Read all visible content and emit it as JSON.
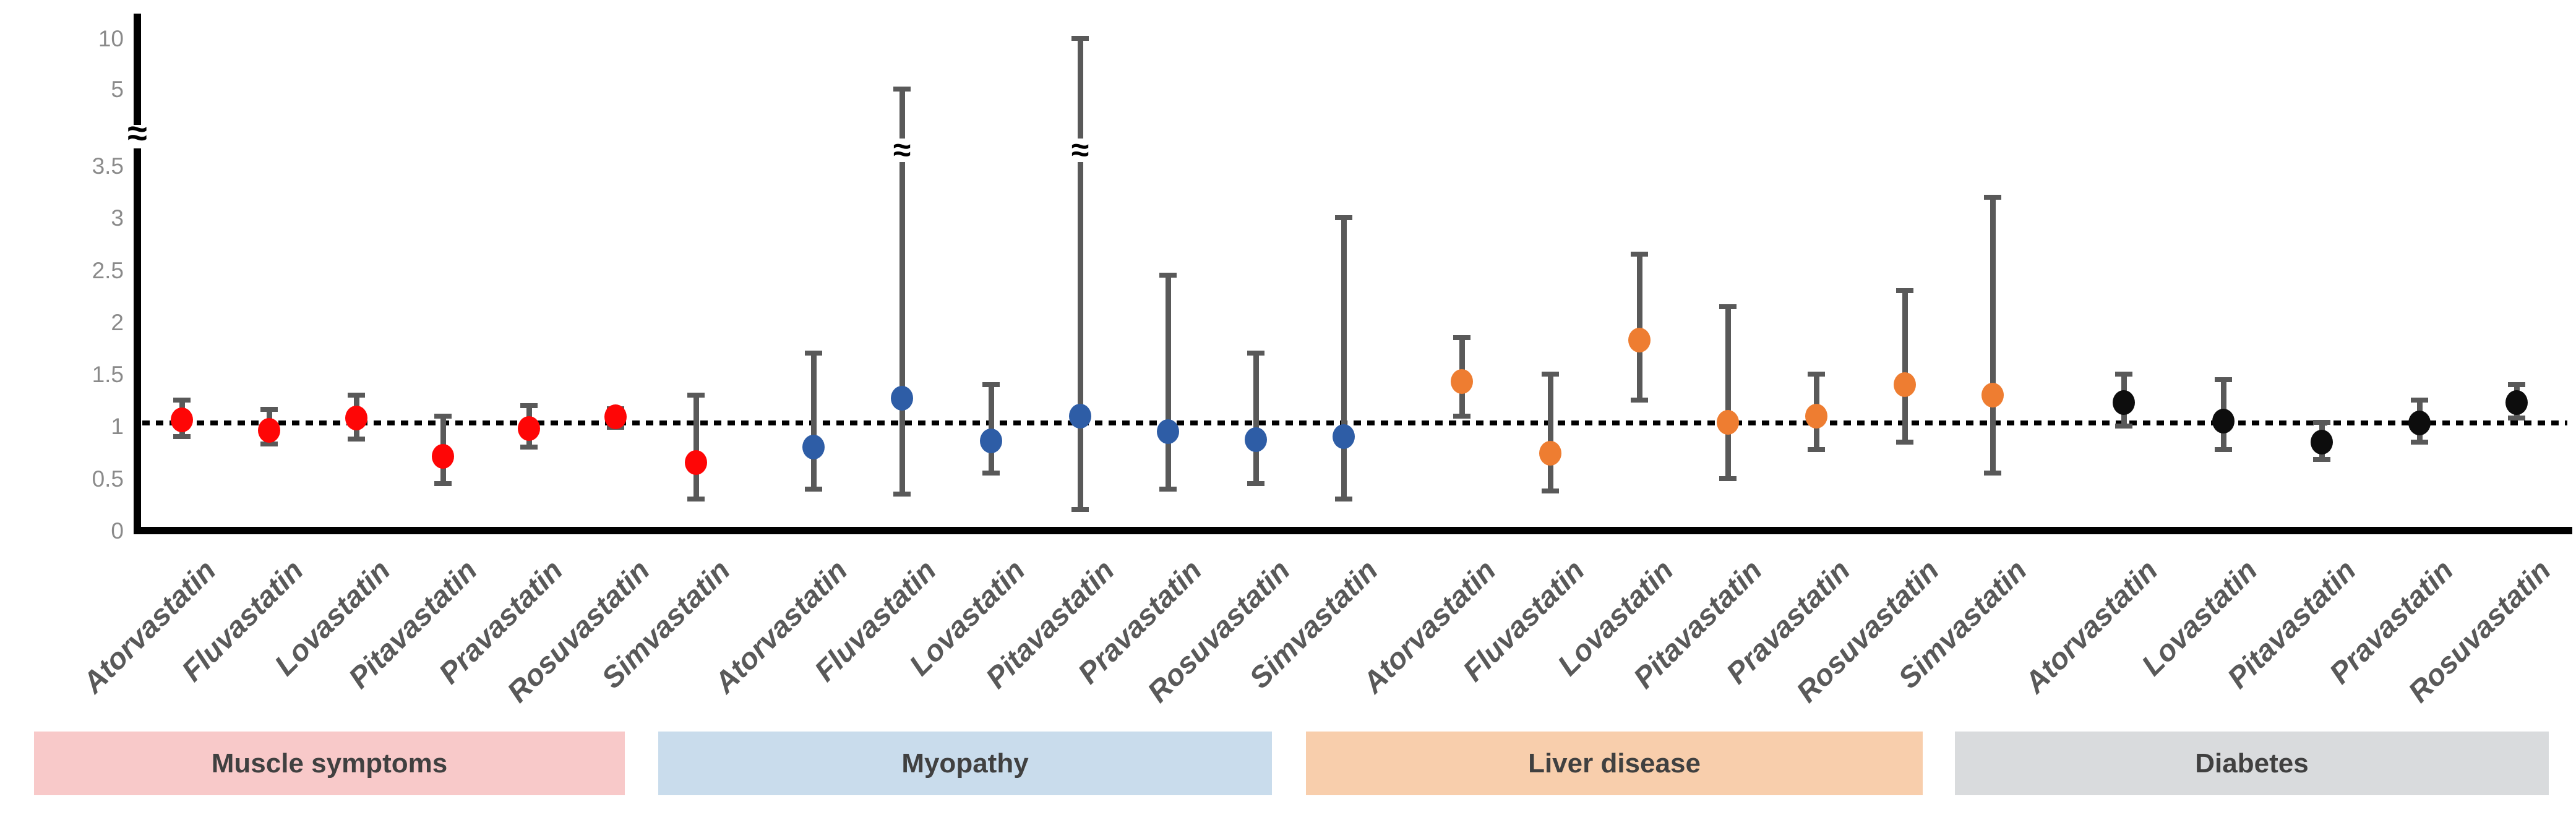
{
  "chart_data": {
    "type": "scatter",
    "subtype": "forest-plot-error-bars",
    "title": "",
    "xlabel": "",
    "ylabel": "",
    "background": "#ffffff",
    "y_axis": {
      "ticks_main": [
        0,
        0.5,
        1,
        1.5,
        2,
        2.5,
        3,
        3.5
      ],
      "ticks_above_break": [
        5,
        10
      ],
      "break_symbol": "≈",
      "axis_break_between": [
        3.5,
        5
      ],
      "reference_line_value": 1,
      "reference_line_style": "dotted",
      "ylim_main": [
        0,
        3.5
      ],
      "tick_color": "#8a8a8a",
      "axis_color": "#000000"
    },
    "errorbar_color": "#595959",
    "grid": false,
    "legend": "none",
    "groups": [
      {
        "label": "Muscle symptoms",
        "band_color": "#f8c9c9",
        "marker_color": "#fe0606",
        "points": [
          {
            "drug": "Atorvastatin",
            "value": 1.06,
            "ci_low": 0.9,
            "ci_high": 1.25
          },
          {
            "drug": "Fluvastatin",
            "value": 0.96,
            "ci_low": 0.83,
            "ci_high": 1.16
          },
          {
            "drug": "Lovastatin",
            "value": 1.08,
            "ci_low": 0.88,
            "ci_high": 1.3
          },
          {
            "drug": "Pitavastatin",
            "value": 0.71,
            "ci_low": 0.45,
            "ci_high": 1.1
          },
          {
            "drug": "Pravastatin",
            "value": 0.98,
            "ci_low": 0.8,
            "ci_high": 1.2
          },
          {
            "drug": "Rosuvastatin",
            "value": 1.09,
            "ci_low": 0.99,
            "ci_high": 1.17
          },
          {
            "drug": "Simvastatin",
            "value": 0.65,
            "ci_low": 0.3,
            "ci_high": 1.3
          }
        ]
      },
      {
        "label": "Myopathy",
        "band_color": "#c9dcec",
        "marker_color": "#2e5da6",
        "points": [
          {
            "drug": "Atorvastatin",
            "value": 0.8,
            "ci_low": 0.4,
            "ci_high": 1.7
          },
          {
            "drug": "Fluvastatin",
            "value": 1.27,
            "ci_low": 0.35,
            "ci_high": 5,
            "ci_break": true
          },
          {
            "drug": "Lovastatin",
            "value": 0.86,
            "ci_low": 0.55,
            "ci_high": 1.4
          },
          {
            "drug": "Pitavastatin",
            "value": 1.1,
            "ci_low": 0.2,
            "ci_high": 10,
            "ci_break": true
          },
          {
            "drug": "Pravastatin",
            "value": 0.95,
            "ci_low": 0.4,
            "ci_high": 2.45
          },
          {
            "drug": "Rosuvastatin",
            "value": 0.87,
            "ci_low": 0.45,
            "ci_high": 1.7
          },
          {
            "drug": "Simvastatin",
            "value": 0.9,
            "ci_low": 0.3,
            "ci_high": 3.0
          }
        ]
      },
      {
        "label": "Liver disease",
        "band_color": "#f8ceac",
        "marker_color": "#ee7d31",
        "points": [
          {
            "drug": "Atorvastatin",
            "value": 1.43,
            "ci_low": 1.1,
            "ci_high": 1.85
          },
          {
            "drug": "Fluvastatin",
            "value": 0.74,
            "ci_low": 0.38,
            "ci_high": 1.5
          },
          {
            "drug": "Lovastatin",
            "value": 1.83,
            "ci_low": 1.25,
            "ci_high": 2.65
          },
          {
            "drug": "Pitavastatin",
            "value": 1.04,
            "ci_low": 0.5,
            "ci_high": 2.15
          },
          {
            "drug": "Pravastatin",
            "value": 1.1,
            "ci_low": 0.78,
            "ci_high": 1.5
          },
          {
            "drug": "Rosuvastatin",
            "value": 1.4,
            "ci_low": 0.85,
            "ci_high": 2.3
          },
          {
            "drug": "Simvastatin",
            "value": 1.3,
            "ci_low": 0.55,
            "ci_high": 3.2
          }
        ]
      },
      {
        "label": "Diabetes",
        "band_color": "#d9dbdd",
        "marker_color": "#0d0d0d",
        "points": [
          {
            "drug": "Atorvastatin",
            "value": 1.23,
            "ci_low": 1.0,
            "ci_high": 1.5
          },
          {
            "drug": "Lovastatin",
            "value": 1.05,
            "ci_low": 0.78,
            "ci_high": 1.45
          },
          {
            "drug": "Pitavastatin",
            "value": 0.85,
            "ci_low": 0.68,
            "ci_high": 1.04
          },
          {
            "drug": "Pravastatin",
            "value": 1.03,
            "ci_low": 0.85,
            "ci_high": 1.25
          },
          {
            "drug": "Rosuvastatin",
            "value": 1.23,
            "ci_low": 1.08,
            "ci_high": 1.4
          }
        ]
      }
    ]
  }
}
